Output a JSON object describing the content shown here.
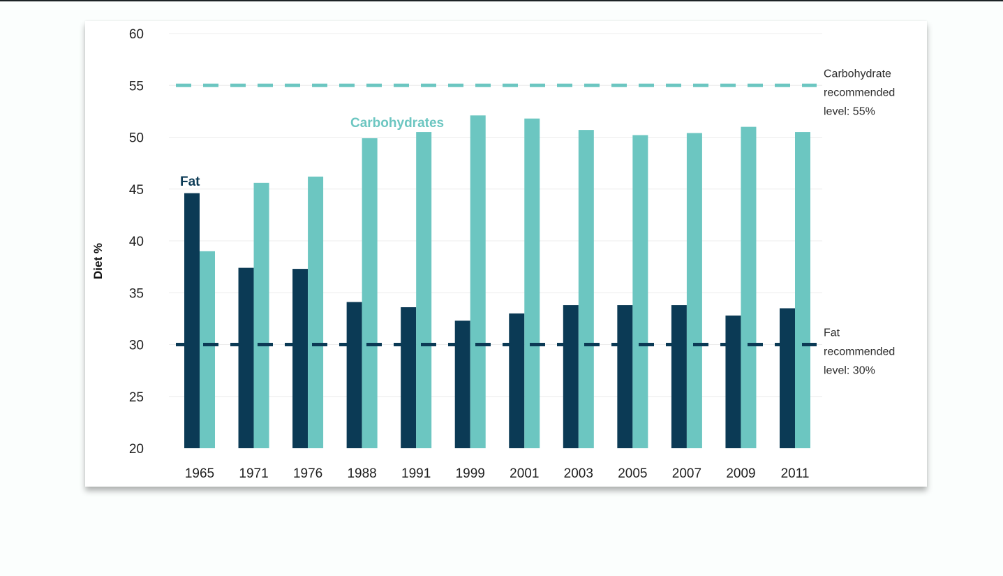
{
  "chart_data": {
    "type": "bar",
    "categories": [
      "1965",
      "1971",
      "1976",
      "1988",
      "1991",
      "1999",
      "2001",
      "2003",
      "2005",
      "2007",
      "2009",
      "2011"
    ],
    "series": [
      {
        "name": "Fat",
        "color": "#0b3a55",
        "values": [
          44.6,
          37.4,
          37.3,
          34.1,
          33.6,
          32.3,
          33.0,
          33.8,
          33.8,
          33.8,
          32.8,
          33.5
        ]
      },
      {
        "name": "Carbohydrates",
        "color": "#6cc6c1",
        "values": [
          39.0,
          45.6,
          46.2,
          49.9,
          50.5,
          52.1,
          51.8,
          50.7,
          50.2,
          50.4,
          51.0,
          50.5
        ]
      }
    ],
    "reference_lines": [
      {
        "value": 55,
        "color": "#6cc6c1",
        "style": "dashed",
        "label_lines": [
          "Carbohydrate",
          "recommended",
          "level: 55%"
        ]
      },
      {
        "value": 30,
        "color": "#0b3a55",
        "style": "dashed",
        "label_lines": [
          "Fat",
          "recommended",
          "level: 30%"
        ]
      }
    ],
    "title": "",
    "xlabel": "",
    "ylabel": "Diet %",
    "ylim": [
      20,
      60
    ],
    "yticks": [
      20,
      25,
      30,
      35,
      40,
      45,
      50,
      55,
      60
    ],
    "grid": true,
    "gridline_color": "#ececec",
    "legend": "inline labels on bars"
  }
}
